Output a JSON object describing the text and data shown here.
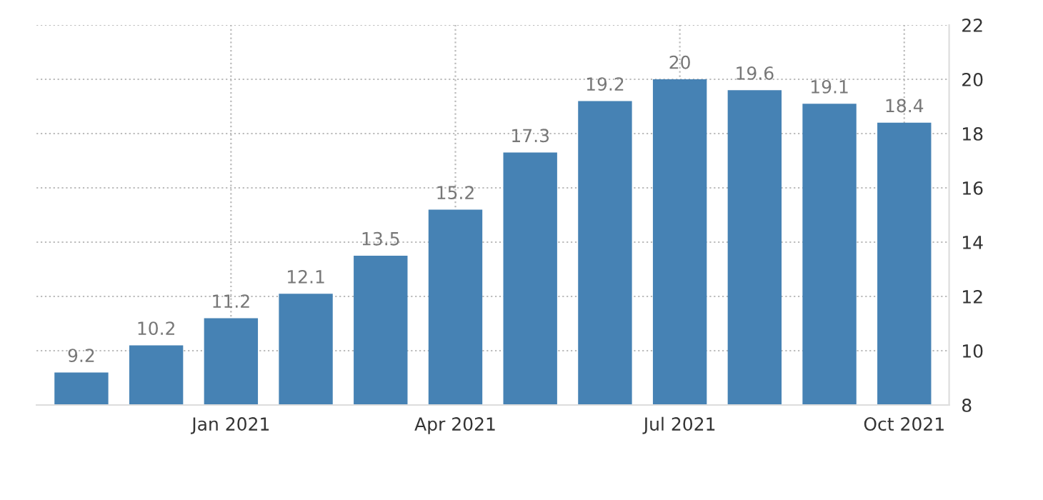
{
  "chart_data": {
    "type": "bar",
    "categories": [
      null,
      null,
      "Jan 2021",
      null,
      null,
      "Apr 2021",
      null,
      null,
      "Jul 2021",
      null,
      null,
      "Oct 2021"
    ],
    "values": [
      9.2,
      10.2,
      11.2,
      12.1,
      13.5,
      15.2,
      17.3,
      19.2,
      20,
      19.6,
      19.1,
      18.4
    ],
    "color": "#4682b4",
    "ylim": [
      8,
      22
    ],
    "yticks": [
      8,
      10,
      12,
      14,
      16,
      18,
      20,
      22
    ],
    "grid": true,
    "data_labels": true
  }
}
